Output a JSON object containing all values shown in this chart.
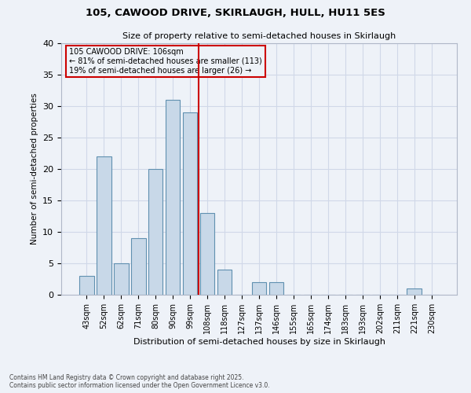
{
  "title1": "105, CAWOOD DRIVE, SKIRLAUGH, HULL, HU11 5ES",
  "title2": "Size of property relative to semi-detached houses in Skirlaugh",
  "xlabel": "Distribution of semi-detached houses by size in Skirlaugh",
  "ylabel": "Number of semi-detached properties",
  "categories": [
    "43sqm",
    "52sqm",
    "62sqm",
    "71sqm",
    "80sqm",
    "90sqm",
    "99sqm",
    "108sqm",
    "118sqm",
    "127sqm",
    "137sqm",
    "146sqm",
    "155sqm",
    "165sqm",
    "174sqm",
    "183sqm",
    "193sqm",
    "202sqm",
    "211sqm",
    "221sqm",
    "230sqm"
  ],
  "values": [
    3,
    22,
    5,
    9,
    20,
    31,
    29,
    13,
    4,
    0,
    2,
    2,
    0,
    0,
    0,
    0,
    0,
    0,
    0,
    1,
    0
  ],
  "bar_color": "#c8d8e8",
  "bar_edge_color": "#6090b0",
  "grid_color": "#d0d8e8",
  "background_color": "#eef2f8",
  "vline_color": "#cc0000",
  "annotation_title": "105 CAWOOD DRIVE: 106sqm",
  "annotation_line1": "← 81% of semi-detached houses are smaller (113)",
  "annotation_line2": "19% of semi-detached houses are larger (26) →",
  "annotation_box_color": "#cc0000",
  "ylim": [
    0,
    40
  ],
  "yticks": [
    0,
    5,
    10,
    15,
    20,
    25,
    30,
    35,
    40
  ],
  "footer1": "Contains HM Land Registry data © Crown copyright and database right 2025.",
  "footer2": "Contains public sector information licensed under the Open Government Licence v3.0."
}
